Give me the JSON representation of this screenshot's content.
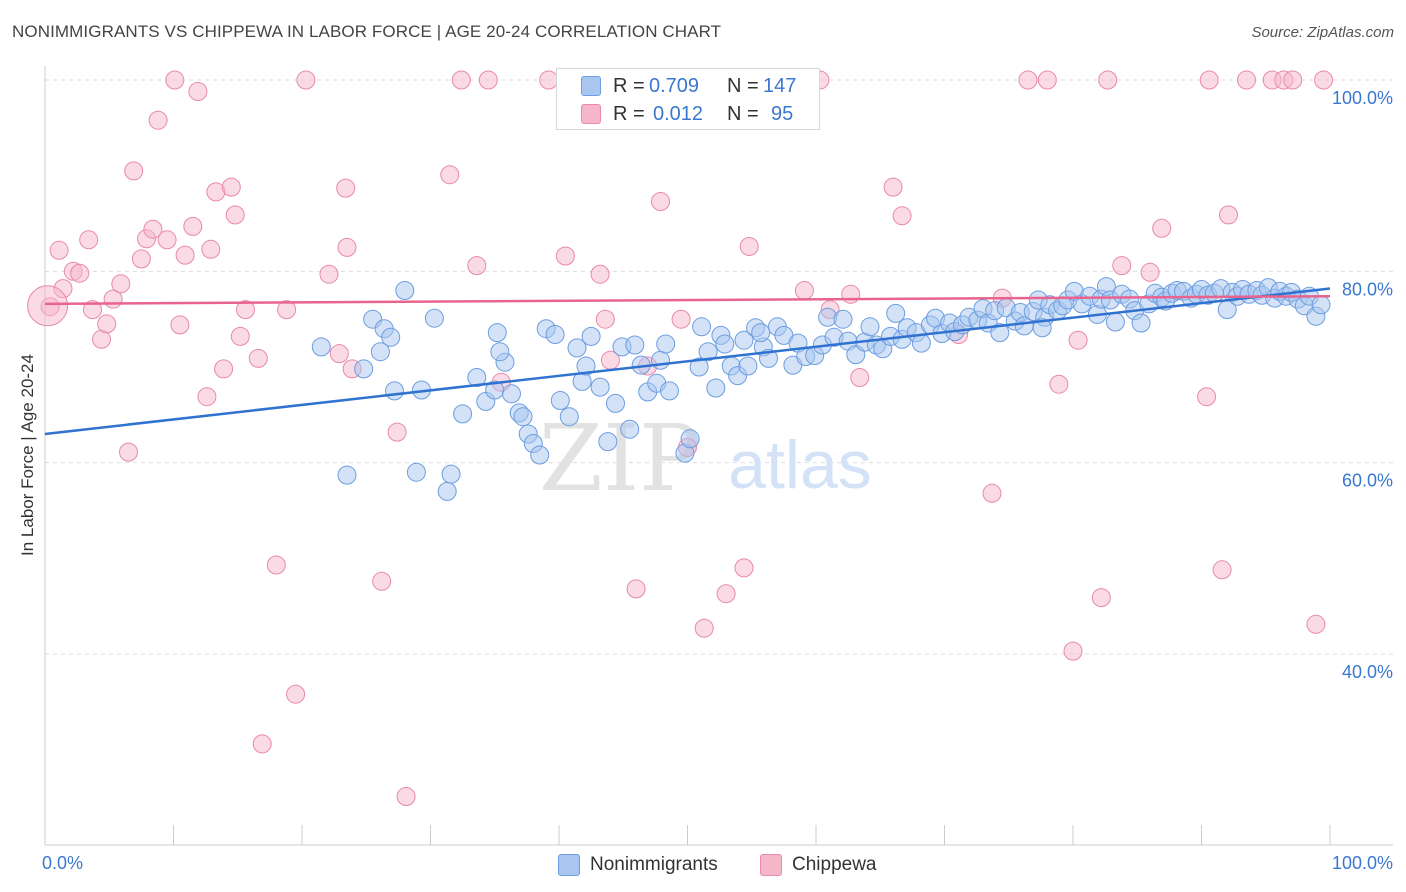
{
  "title": "NONIMMIGRANTS VS CHIPPEWA IN LABOR FORCE | AGE 20-24 CORRELATION CHART",
  "source": "Source: ZipAtlas.com",
  "watermark": {
    "zip": "ZIP",
    "atlas": "atlas"
  },
  "legend": {
    "rows": [
      {
        "series": "Nonimmigrants",
        "r_label": "R =",
        "r_value": "0.709",
        "n_label": "N =",
        "n_value": "147"
      },
      {
        "series": "Chippewa",
        "r_label": "R =",
        "r_value": "0.012",
        "n_label": "N =",
        "n_value": "95"
      }
    ]
  },
  "colors": {
    "blue_fill": "#a8c6f0",
    "blue_stroke": "#6c9ee0",
    "blue_line": "#2f72d0",
    "pink_fill": "#f5b6ca",
    "pink_stroke": "#e88aa8",
    "pink_line": "#e8648e",
    "tick_label": "#3a78d0",
    "grid": "#dddddd"
  },
  "chart_data": {
    "type": "scatter",
    "title": "NONIMMIGRANTS VS CHIPPEWA IN LABOR FORCE | AGE 20-24 CORRELATION CHART",
    "xlabel": "",
    "ylabel": "In Labor Force | Age 20-24",
    "xlim": [
      0,
      100
    ],
    "ylim": [
      20,
      102
    ],
    "x_tick_labels": [
      "0.0%",
      "100.0%"
    ],
    "y_ticks": [
      40,
      60,
      80,
      100
    ],
    "y_tick_labels": [
      "40.0%",
      "60.0%",
      "80.0%",
      "100.0%"
    ],
    "grid": true,
    "legend": "top-center",
    "series": [
      {
        "name": "Nonimmigrants",
        "r": 0.709,
        "n": 147,
        "trend": {
          "x": [
            0,
            100
          ],
          "y": [
            63.0,
            78.2
          ]
        },
        "points": [
          [
            21.5,
            72.1
          ],
          [
            23.5,
            58.7
          ],
          [
            24.8,
            69.8
          ],
          [
            25.5,
            75.0
          ],
          [
            26.1,
            71.6
          ],
          [
            26.4,
            74.0
          ],
          [
            27.2,
            67.5
          ],
          [
            28.0,
            78.0
          ],
          [
            28.9,
            59.0
          ],
          [
            29.3,
            67.6
          ],
          [
            30.3,
            75.1
          ],
          [
            31.3,
            57.0
          ],
          [
            31.6,
            58.8
          ],
          [
            32.5,
            65.1
          ],
          [
            33.6,
            68.9
          ],
          [
            34.3,
            66.4
          ],
          [
            35.0,
            67.6
          ],
          [
            35.2,
            73.6
          ],
          [
            35.8,
            70.5
          ],
          [
            36.3,
            67.2
          ],
          [
            36.9,
            65.2
          ],
          [
            37.2,
            64.8
          ],
          [
            37.6,
            63.0
          ],
          [
            38.0,
            62.0
          ],
          [
            38.5,
            60.8
          ],
          [
            39.0,
            74.0
          ],
          [
            39.7,
            73.4
          ],
          [
            40.1,
            66.5
          ],
          [
            40.8,
            64.8
          ],
          [
            41.4,
            72.0
          ],
          [
            41.8,
            68.5
          ],
          [
            42.1,
            70.1
          ],
          [
            42.5,
            73.2
          ],
          [
            43.2,
            67.9
          ],
          [
            43.8,
            62.2
          ],
          [
            44.4,
            66.2
          ],
          [
            44.9,
            72.1
          ],
          [
            45.5,
            63.5
          ],
          [
            45.9,
            72.3
          ],
          [
            46.4,
            70.2
          ],
          [
            46.9,
            67.4
          ],
          [
            47.6,
            68.3
          ],
          [
            47.9,
            70.7
          ],
          [
            48.6,
            67.5
          ],
          [
            49.8,
            61.0
          ],
          [
            50.2,
            62.5
          ],
          [
            50.9,
            70.0
          ],
          [
            51.1,
            74.2
          ],
          [
            51.6,
            71.6
          ],
          [
            52.2,
            67.8
          ],
          [
            52.6,
            73.3
          ],
          [
            52.9,
            72.4
          ],
          [
            53.4,
            70.1
          ],
          [
            53.9,
            69.1
          ],
          [
            54.4,
            72.8
          ],
          [
            54.7,
            70.1
          ],
          [
            55.3,
            74.1
          ],
          [
            55.9,
            72.1
          ],
          [
            56.3,
            70.9
          ],
          [
            57.0,
            74.2
          ],
          [
            57.5,
            73.3
          ],
          [
            58.2,
            70.2
          ],
          [
            58.6,
            72.5
          ],
          [
            59.2,
            71.1
          ],
          [
            59.9,
            71.2
          ],
          [
            60.5,
            72.3
          ],
          [
            60.9,
            75.2
          ],
          [
            61.4,
            73.1
          ],
          [
            62.1,
            75.0
          ],
          [
            62.5,
            72.7
          ],
          [
            63.1,
            71.3
          ],
          [
            63.8,
            72.6
          ],
          [
            64.2,
            74.2
          ],
          [
            64.7,
            72.3
          ],
          [
            65.2,
            71.9
          ],
          [
            65.8,
            73.2
          ],
          [
            66.2,
            75.6
          ],
          [
            66.7,
            72.9
          ],
          [
            67.1,
            74.1
          ],
          [
            67.8,
            73.6
          ],
          [
            68.2,
            72.5
          ],
          [
            68.9,
            74.4
          ],
          [
            69.3,
            75.1
          ],
          [
            69.8,
            73.5
          ],
          [
            70.4,
            74.6
          ],
          [
            70.8,
            73.7
          ],
          [
            71.4,
            74.4
          ],
          [
            71.9,
            75.2
          ],
          [
            72.6,
            74.9
          ],
          [
            73.0,
            76.1
          ],
          [
            73.4,
            74.6
          ],
          [
            73.9,
            75.9
          ],
          [
            74.3,
            73.6
          ],
          [
            74.8,
            76.2
          ],
          [
            75.5,
            74.8
          ],
          [
            75.9,
            75.7
          ],
          [
            76.2,
            74.3
          ],
          [
            76.9,
            75.8
          ],
          [
            77.3,
            77.0
          ],
          [
            77.8,
            75.2
          ],
          [
            78.2,
            76.5
          ],
          [
            78.8,
            75.9
          ],
          [
            79.2,
            76.4
          ],
          [
            79.6,
            77.0
          ],
          [
            80.1,
            77.9
          ],
          [
            80.7,
            76.6
          ],
          [
            81.3,
            77.4
          ],
          [
            81.9,
            75.5
          ],
          [
            82.2,
            77.1
          ],
          [
            82.6,
            78.4
          ],
          [
            82.9,
            77.0
          ],
          [
            83.3,
            74.7
          ],
          [
            83.8,
            77.6
          ],
          [
            84.4,
            77.1
          ],
          [
            84.8,
            75.9
          ],
          [
            85.3,
            74.6
          ],
          [
            85.9,
            76.6
          ],
          [
            86.4,
            77.7
          ],
          [
            86.9,
            77.3
          ],
          [
            87.2,
            76.9
          ],
          [
            87.7,
            77.7
          ],
          [
            88.1,
            78.0
          ],
          [
            88.6,
            77.9
          ],
          [
            89.2,
            77.2
          ],
          [
            89.6,
            77.6
          ],
          [
            90.0,
            78.1
          ],
          [
            90.5,
            77.5
          ],
          [
            91.0,
            77.7
          ],
          [
            91.5,
            78.2
          ],
          [
            92.0,
            76.0
          ],
          [
            92.4,
            77.8
          ],
          [
            92.8,
            77.4
          ],
          [
            93.2,
            78.1
          ],
          [
            93.7,
            77.6
          ],
          [
            94.3,
            78.0
          ],
          [
            94.7,
            77.5
          ],
          [
            95.2,
            78.3
          ],
          [
            95.7,
            77.2
          ],
          [
            96.1,
            77.9
          ],
          [
            96.6,
            77.4
          ],
          [
            97.0,
            77.8
          ],
          [
            97.5,
            77.1
          ],
          [
            98.0,
            76.4
          ],
          [
            98.4,
            77.4
          ],
          [
            98.9,
            75.3
          ],
          [
            99.3,
            76.5
          ],
          [
            26.9,
            73.1
          ],
          [
            35.4,
            71.6
          ],
          [
            48.3,
            72.4
          ],
          [
            55.7,
            73.6
          ],
          [
            77.6,
            74.1
          ]
        ]
      },
      {
        "name": "Chippewa",
        "r": 0.012,
        "n": 95,
        "trend": {
          "x": [
            0,
            100
          ],
          "y": [
            76.6,
            77.4
          ]
        },
        "points": [
          [
            0.4,
            76.3
          ],
          [
            1.1,
            82.2
          ],
          [
            1.4,
            78.2
          ],
          [
            2.2,
            80.0
          ],
          [
            2.7,
            79.8
          ],
          [
            3.4,
            83.3
          ],
          [
            3.7,
            76.0
          ],
          [
            4.4,
            72.9
          ],
          [
            4.8,
            74.5
          ],
          [
            5.3,
            77.1
          ],
          [
            5.9,
            78.7
          ],
          [
            6.5,
            61.1
          ],
          [
            6.9,
            90.5
          ],
          [
            7.5,
            81.3
          ],
          [
            7.9,
            83.4
          ],
          [
            8.4,
            84.4
          ],
          [
            8.8,
            95.8
          ],
          [
            9.5,
            83.3
          ],
          [
            10.1,
            100.0
          ],
          [
            10.5,
            74.4
          ],
          [
            10.9,
            81.7
          ],
          [
            11.5,
            84.7
          ],
          [
            11.9,
            98.8
          ],
          [
            12.6,
            66.9
          ],
          [
            12.9,
            82.3
          ],
          [
            13.3,
            88.3
          ],
          [
            13.9,
            69.8
          ],
          [
            14.5,
            88.8
          ],
          [
            14.8,
            85.9
          ],
          [
            15.2,
            73.2
          ],
          [
            15.6,
            76.0
          ],
          [
            16.6,
            70.9
          ],
          [
            16.9,
            30.6
          ],
          [
            18.0,
            49.3
          ],
          [
            18.8,
            76.0
          ],
          [
            19.5,
            35.8
          ],
          [
            20.3,
            100.0
          ],
          [
            22.9,
            71.4
          ],
          [
            22.1,
            79.7
          ],
          [
            23.4,
            88.7
          ],
          [
            23.5,
            82.5
          ],
          [
            23.9,
            69.8
          ],
          [
            26.2,
            47.6
          ],
          [
            27.4,
            63.2
          ],
          [
            28.1,
            25.1
          ],
          [
            31.5,
            90.1
          ],
          [
            32.4,
            100.0
          ],
          [
            33.6,
            80.6
          ],
          [
            34.5,
            100.0
          ],
          [
            35.5,
            68.4
          ],
          [
            39.2,
            100.0
          ],
          [
            40.5,
            81.6
          ],
          [
            43.2,
            79.7
          ],
          [
            43.6,
            75.0
          ],
          [
            44.0,
            70.7
          ],
          [
            45.4,
            100.0
          ],
          [
            46.0,
            46.8
          ],
          [
            46.9,
            70.1
          ],
          [
            47.9,
            87.3
          ],
          [
            49.5,
            75.0
          ],
          [
            50.0,
            61.6
          ],
          [
            51.3,
            42.7
          ],
          [
            53.0,
            46.3
          ],
          [
            54.4,
            49.0
          ],
          [
            54.8,
            82.6
          ],
          [
            59.1,
            78.0
          ],
          [
            60.3,
            100.0
          ],
          [
            61.1,
            76.0
          ],
          [
            62.7,
            77.6
          ],
          [
            63.4,
            68.9
          ],
          [
            66.0,
            88.8
          ],
          [
            66.7,
            85.8
          ],
          [
            71.1,
            73.4
          ],
          [
            73.7,
            56.8
          ],
          [
            74.5,
            77.2
          ],
          [
            76.5,
            100.0
          ],
          [
            78.0,
            100.0
          ],
          [
            78.9,
            68.2
          ],
          [
            80.0,
            40.3
          ],
          [
            80.4,
            72.8
          ],
          [
            82.2,
            45.9
          ],
          [
            82.7,
            100.0
          ],
          [
            83.8,
            80.6
          ],
          [
            86.0,
            79.9
          ],
          [
            86.9,
            84.5
          ],
          [
            90.4,
            66.9
          ],
          [
            90.6,
            100.0
          ],
          [
            91.6,
            48.8
          ],
          [
            92.1,
            85.9
          ],
          [
            93.5,
            100.0
          ],
          [
            95.5,
            100.0
          ],
          [
            96.4,
            100.0
          ],
          [
            97.1,
            100.0
          ],
          [
            98.9,
            43.1
          ],
          [
            99.5,
            100.0
          ]
        ]
      }
    ]
  },
  "axis": {
    "x_left_label": "0.0%",
    "x_right_label": "100.0%",
    "y_labels": [
      "100.0%",
      "80.0%",
      "60.0%",
      "40.0%"
    ]
  }
}
